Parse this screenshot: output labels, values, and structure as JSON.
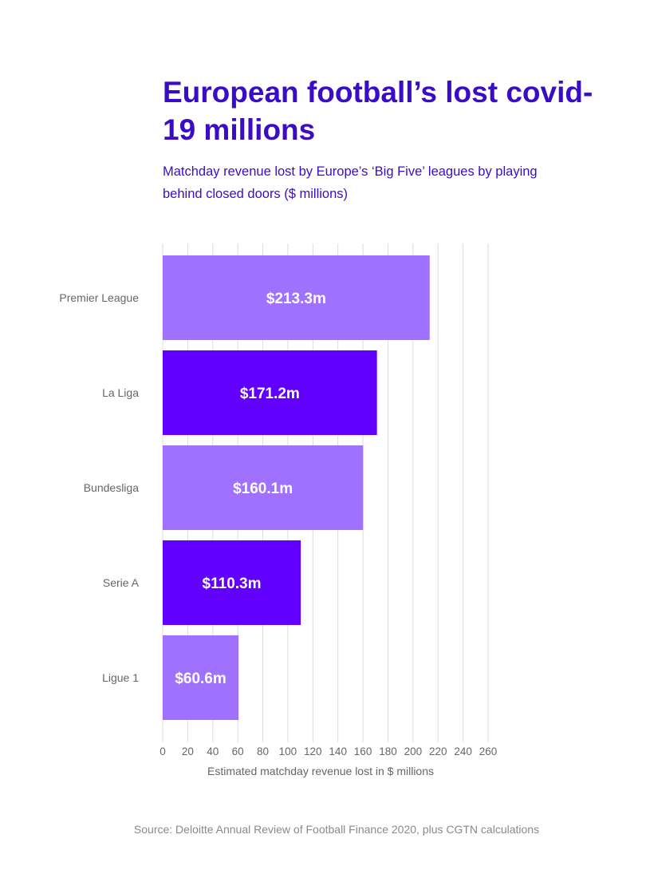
{
  "title": "European football’s lost covid-19 millions",
  "subtitle": "Matchday revenue lost by Europe’s ‘Big Five’ leagues by playing behind closed doors ($ millions)",
  "source": "Source: Deloitte Annual Review of Football Finance 2020, plus CGTN calculations",
  "colors": {
    "title": "#3b0cc8",
    "light_bar": "#a070ff",
    "dark_bar": "#6200ff",
    "grid": "#dcdcdc",
    "axis_text": "#666666"
  },
  "chart_data": {
    "type": "bar",
    "orientation": "horizontal",
    "title": "European football’s lost covid-19 millions",
    "categories": [
      "Premier League",
      "La Liga",
      "Bundesliga",
      "Serie A",
      "Ligue 1"
    ],
    "values": [
      213.3,
      171.2,
      160.1,
      110.3,
      60.6
    ],
    "data_labels": [
      "$213.3m",
      "$171.2m",
      "$160.1m",
      "$110.3m",
      "$60.6m"
    ],
    "xlabel": "Estimated matchday revenue lost in $ millions",
    "ylabel": "",
    "xlim": [
      0,
      260
    ],
    "xticks": [
      0,
      20,
      40,
      60,
      80,
      100,
      120,
      140,
      160,
      180,
      200,
      220,
      240,
      260
    ],
    "grid": true,
    "legend": "none"
  }
}
